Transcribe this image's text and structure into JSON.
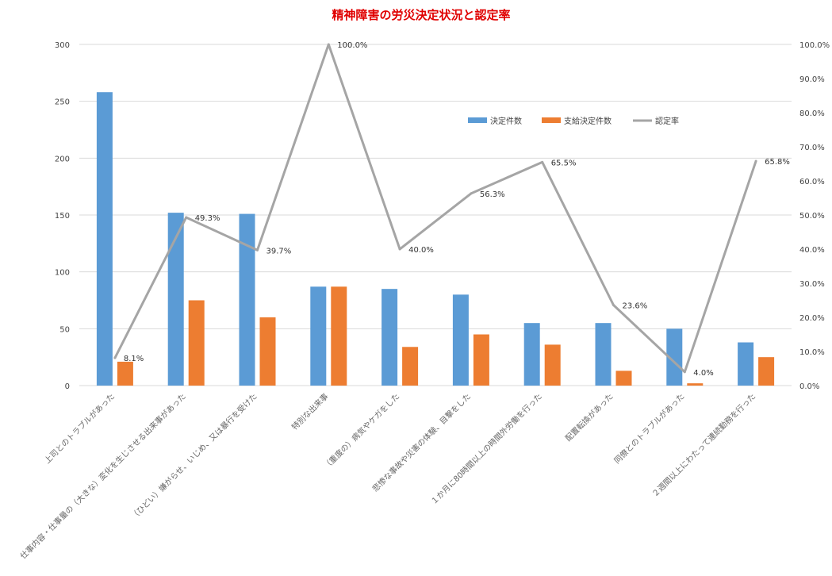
{
  "chart_data": {
    "type": "bar",
    "title": "精神障害の労災決定状況と認定率",
    "categories": [
      "上司とのトラブルがあった",
      "仕事内容・仕事量の（大きな）変化を生じさせる出来事があった",
      "（ひどい）嫌がらせ、いじめ、又は暴行を受けた",
      "特別な出来事",
      "（重度の）病気やケガをした",
      "悲惨な事故や災害の体験、目撃をした",
      "１か月に80時間以上の時間外労働を行った",
      "配置転換があった",
      "同僚とのトラブルがあった",
      "２週間以上にわたって連続勤務を行った"
    ],
    "series": [
      {
        "name": "決定件数",
        "kind": "bar",
        "axis": "left",
        "color": "#5B9BD5",
        "values": [
          258,
          152,
          151,
          87,
          85,
          80,
          55,
          55,
          50,
          38
        ]
      },
      {
        "name": "支給決定件数",
        "kind": "bar",
        "axis": "left",
        "color": "#ED7D31",
        "values": [
          21,
          75,
          60,
          87,
          34,
          45,
          36,
          13,
          2,
          25
        ]
      },
      {
        "name": "認定率",
        "kind": "line",
        "axis": "right",
        "color": "#A5A5A5",
        "values": [
          8.1,
          49.3,
          39.7,
          100.0,
          40.0,
          56.3,
          65.5,
          23.6,
          4.0,
          65.8
        ],
        "labels": [
          "8.1%",
          "49.3%",
          "39.7%",
          "100.0%",
          "40.0%",
          "56.3%",
          "65.5%",
          "23.6%",
          "4.0%",
          "65.8%"
        ]
      }
    ],
    "ylim": [
      0,
      300
    ],
    "yticks": [
      "0",
      "50",
      "100",
      "150",
      "200",
      "250",
      "300"
    ],
    "y2lim": [
      0,
      100
    ],
    "y2ticks": [
      "0.0%",
      "10.0%",
      "20.0%",
      "30.0%",
      "40.0%",
      "50.0%",
      "60.0%",
      "70.0%",
      "80.0%",
      "90.0%",
      "100.0%"
    ],
    "grid": true,
    "legend_position": "top-right",
    "title_color": "#E00000",
    "grid_color": "#D9D9D9"
  }
}
